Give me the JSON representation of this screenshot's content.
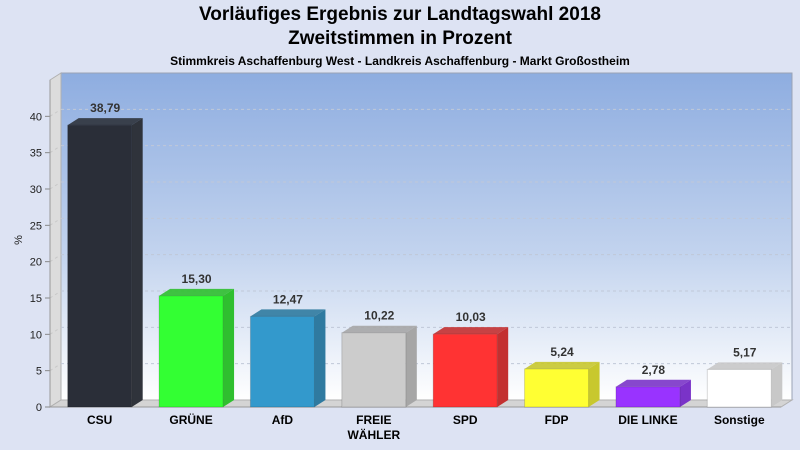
{
  "title": "Vorläufiges Ergebnis zur Landtagswahl 2018",
  "subtitle": "Zweitstimmen in Prozent",
  "caption": "Stimmkreis Aschaffenburg West - Landkreis Aschaffenburg - Markt Großostheim",
  "chart_data": {
    "type": "bar",
    "title": "Vorläufiges Ergebnis zur Landtagswahl 2018 - Zweitstimmen in Prozent",
    "subtitle": "Stimmkreis Aschaffenburg West - Landkreis Aschaffenburg - Markt Großostheim",
    "xlabel": "",
    "ylabel": "%",
    "ylim": [
      0,
      45
    ],
    "yticks": [
      0,
      5,
      10,
      15,
      20,
      25,
      30,
      35,
      40
    ],
    "grid": true,
    "categories": [
      "CSU",
      "GRÜNE",
      "AfD",
      "FREIE WÄHLER",
      "SPD",
      "FDP",
      "DIE LINKE",
      "Sonstige"
    ],
    "category_lines": [
      [
        "CSU"
      ],
      [
        "GRÜNE"
      ],
      [
        "AfD"
      ],
      [
        "FREIE",
        "WÄHLER"
      ],
      [
        "SPD"
      ],
      [
        "FDP"
      ],
      [
        "DIE LINKE"
      ],
      [
        "Sonstige"
      ]
    ],
    "values": [
      38.79,
      15.3,
      12.47,
      10.22,
      10.03,
      5.24,
      2.78,
      5.17
    ],
    "value_labels": [
      "38,79",
      "15,30",
      "12,47",
      "10,22",
      "10,03",
      "5,24",
      "2,78",
      "5,17"
    ],
    "colors": [
      "#2a2e38",
      "#33ff33",
      "#3399cc",
      "#cccccc",
      "#ff3333",
      "#ffff33",
      "#9933ff",
      "#ffffff"
    ],
    "side_colors": [
      "#2f333b",
      "#2fbf2f",
      "#2f7aa0",
      "#a6a6a6",
      "#c33030",
      "#c8c82e",
      "#7a33c8",
      "#c8c8c8"
    ]
  }
}
